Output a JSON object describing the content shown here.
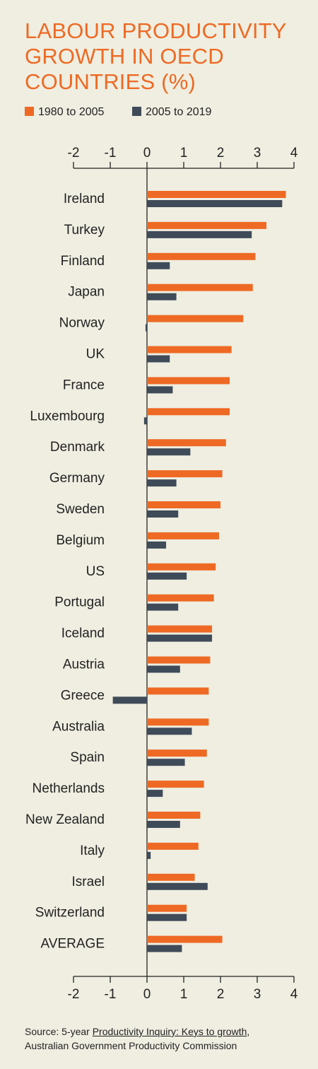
{
  "title_lines": [
    "LABOUR PRODUCTIVITY",
    "GROWTH IN OECD",
    "COUNTRIES (%)"
  ],
  "legend": [
    {
      "label": "1980 to 2005",
      "color": "#ee6a24"
    },
    {
      "label": "2005 to 2019",
      "color": "#3f4b59"
    }
  ],
  "source": {
    "prefix": "Source: 5-year ",
    "link_text": "Productivity Inquiry: Keys to growth",
    "suffix": ",",
    "line2": "Australian Government Productivity Commission"
  },
  "chart_data": {
    "type": "bar",
    "orientation": "horizontal",
    "title": "LABOUR PRODUCTIVITY GROWTH IN OECD COUNTRIES (%)",
    "xlim": [
      -2,
      4
    ],
    "ticks": [
      -2,
      -1,
      0,
      1,
      2,
      3,
      4
    ],
    "axis_position": "top and bottom",
    "grid": false,
    "legend_position": "top-left",
    "categories": [
      "Ireland",
      "Turkey",
      "Finland",
      "Japan",
      "Norway",
      "UK",
      "France",
      "Luxembourg",
      "Denmark",
      "Germany",
      "Sweden",
      "Belgium",
      "US",
      "Portugal",
      "Iceland",
      "Austria",
      "Greece",
      "Australia",
      "Spain",
      "Netherlands",
      "New Zealand",
      "Italy",
      "Israel",
      "Switzerland",
      "AVERAGE"
    ],
    "series": [
      {
        "name": "1980 to 2005",
        "color": "#ee6a24",
        "values": [
          3.78,
          3.25,
          2.95,
          2.88,
          2.62,
          2.3,
          2.25,
          2.25,
          2.15,
          2.05,
          2.0,
          1.96,
          1.87,
          1.82,
          1.77,
          1.72,
          1.68,
          1.68,
          1.63,
          1.55,
          1.45,
          1.4,
          1.3,
          1.08,
          2.05
        ]
      },
      {
        "name": "2005 to 2019",
        "color": "#3f4b59",
        "values": [
          3.68,
          2.85,
          0.62,
          0.8,
          -0.04,
          0.62,
          0.7,
          -0.08,
          1.18,
          0.8,
          0.85,
          0.52,
          1.08,
          0.85,
          1.77,
          0.9,
          -0.93,
          1.22,
          1.03,
          0.43,
          0.9,
          0.1,
          1.65,
          1.08,
          0.95
        ]
      }
    ]
  }
}
